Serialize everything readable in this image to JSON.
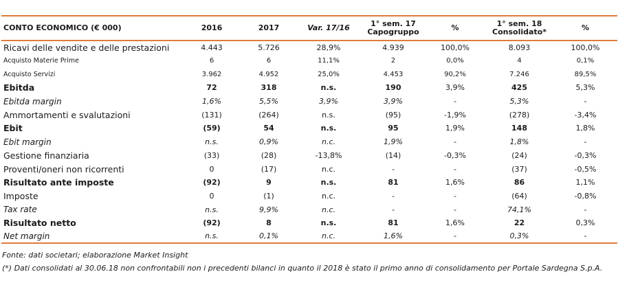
{
  "header": {
    "label": "CONTO ECONOMICO (€ 000)",
    "c2016": "2016",
    "c2017": "2017",
    "var": "Var. 17/16",
    "sem17_line1": "1° sem. 17",
    "sem17_line2": "Capogruppo",
    "pct1": "%",
    "sem18_line1": "1° sem. 18",
    "sem18_line2": "Consolidato*",
    "pct2": "%"
  },
  "rows": [
    {
      "label": "Ricavi delle vendite e delle prestazioni",
      "y2016": "4.443",
      "y2017": "5.726",
      "var": "28,9%",
      "s17": "4.939",
      "p17": "100,0%",
      "s18": "8.093",
      "p18": "100,0%"
    },
    {
      "label": "Acquisto Materie Prime",
      "y2016": "6",
      "y2017": "6",
      "var": "11,1%",
      "s17": "2",
      "p17": "0,0%",
      "s18": "4",
      "p18": "0,1%"
    },
    {
      "label": "Acquisto Servizi",
      "y2016": "3.962",
      "y2017": "4.952",
      "var": "25,0%",
      "s17": "4.453",
      "p17": "90,2%",
      "s18": "7.246",
      "p18": "89,5%"
    },
    {
      "label": "Ebitda",
      "y2016": "72",
      "y2017": "318",
      "var": "n.s.",
      "s17": "190",
      "p17": "3,9%",
      "s18": "425",
      "p18": "5,3%"
    },
    {
      "label": "Ebitda margin",
      "y2016": "1,6%",
      "y2017": "5,5%",
      "var": "3,9%",
      "s17": "3,9%",
      "p17": "-",
      "s18": "5,3%",
      "p18": "-"
    },
    {
      "label": "Ammortamenti  e svalutazioni",
      "y2016": "(131)",
      "y2017": "(264)",
      "var": "n.s.",
      "s17": "(95)",
      "p17": "-1,9%",
      "s18": "(278)",
      "p18": "-3,4%"
    },
    {
      "label": "Ebit",
      "y2016": "(59)",
      "y2017": "54",
      "var": "n.s.",
      "s17": "95",
      "p17": "1,9%",
      "s18": "148",
      "p18": "1,8%"
    },
    {
      "label": "Ebit margin",
      "y2016": "n.s.",
      "y2017": "0,9%",
      "var": "n.c.",
      "s17": "1,9%",
      "p17": "-",
      "s18": "1,8%",
      "p18": "-"
    },
    {
      "label": "Gestione finanziaria",
      "y2016": "(33)",
      "y2017": "(28)",
      "var": "-13,8%",
      "s17": "(14)",
      "p17": "-0,3%",
      "s18": "(24)",
      "p18": "-0,3%"
    },
    {
      "label": "Proventi/oneri non ricorrenti",
      "y2016": "0",
      "y2017": "(17)",
      "var": "n.c.",
      "s17": "-",
      "p17": "-",
      "s18": "(37)",
      "p18": "-0,5%"
    },
    {
      "label": "Risultato ante imposte",
      "y2016": "(92)",
      "y2017": "9",
      "var": "n.s.",
      "s17": "81",
      "p17": "1,6%",
      "s18": "86",
      "p18": "1,1%"
    },
    {
      "label": "Imposte",
      "y2016": "0",
      "y2017": "(1)",
      "var": "n.c.",
      "s17": "-",
      "p17": "-",
      "s18": "(64)",
      "p18": "-0,8%"
    },
    {
      "label": "Tax rate",
      "y2016": "n.s.",
      "y2017": "9,9%",
      "var": "n.c.",
      "s17": "-",
      "p17": "-",
      "s18": "74,1%",
      "p18": "-"
    },
    {
      "label": "Risultato netto",
      "y2016": "(92)",
      "y2017": "8",
      "var": "n.s.",
      "s17": "81",
      "p17": "1,6%",
      "s18": "22",
      "p18": "0,3%"
    },
    {
      "label": "Net margin",
      "y2016": "n.s.",
      "y2017": "0,1%",
      "var": "n.c.",
      "s17": "1,6%",
      "p17": "-",
      "s18": "0,3%",
      "p18": "-"
    }
  ],
  "notes": {
    "source": "Fonte: dati societari; elaborazione Market Insight",
    "footnote": "(*) Dati consolidati al 30.06.18 non confrontabili non i precedenti bilanci in quanto il 2018 è stato il primo anno di consolidamento per Portale Sardegna S.p.A."
  },
  "colors": {
    "rule": "#e07b39"
  }
}
